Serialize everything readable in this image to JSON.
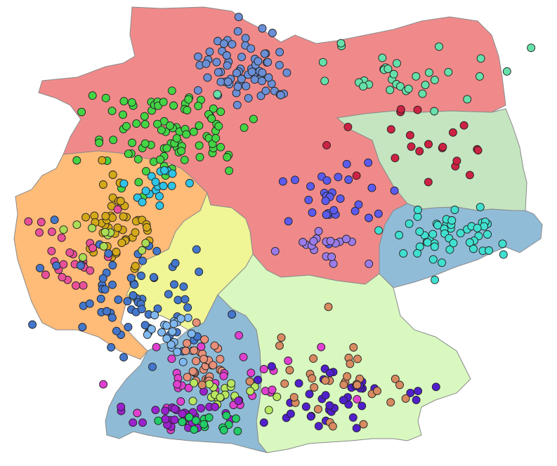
{
  "map": {
    "regions": [
      {
        "id": "north",
        "fill": "#f08a8a"
      },
      {
        "id": "southwest",
        "fill": "#ffbb78"
      },
      {
        "id": "central-west",
        "fill": "#f0f596"
      },
      {
        "id": "east",
        "fill": "#c4e5c0"
      },
      {
        "id": "saxony-band",
        "fill": "#90bcd8"
      },
      {
        "id": "southeast",
        "fill": "#d8f8c0"
      },
      {
        "id": "south",
        "fill": "#8fbbd6"
      }
    ],
    "clusters": [
      {
        "color": "#6b8fd6",
        "count": 70
      },
      {
        "color": "#44d444",
        "count": 95
      },
      {
        "color": "#66e0aa",
        "count": 35
      },
      {
        "color": "#5b5bef",
        "count": 30
      },
      {
        "color": "#9b7be8",
        "count": 18
      },
      {
        "color": "#d4a817",
        "count": 45
      },
      {
        "color": "#2ec4e8",
        "count": 18
      },
      {
        "color": "#e8509a",
        "count": 25
      },
      {
        "color": "#cc2244",
        "count": 22
      },
      {
        "color": "#40e0d0",
        "count": 50
      },
      {
        "color": "#4477cc",
        "count": 70
      },
      {
        "color": "#7fb8ee",
        "count": 20
      },
      {
        "color": "#e8907a",
        "count": 30
      },
      {
        "color": "#e040d0",
        "count": 35
      },
      {
        "color": "#b8e860",
        "count": 20
      },
      {
        "color": "#9922cc",
        "count": 30
      },
      {
        "color": "#5020cc",
        "count": 40
      },
      {
        "color": "#d88a60",
        "count": 35
      },
      {
        "color": "#22cc66",
        "count": 15
      },
      {
        "color": "#aadd55",
        "count": 10
      }
    ]
  }
}
